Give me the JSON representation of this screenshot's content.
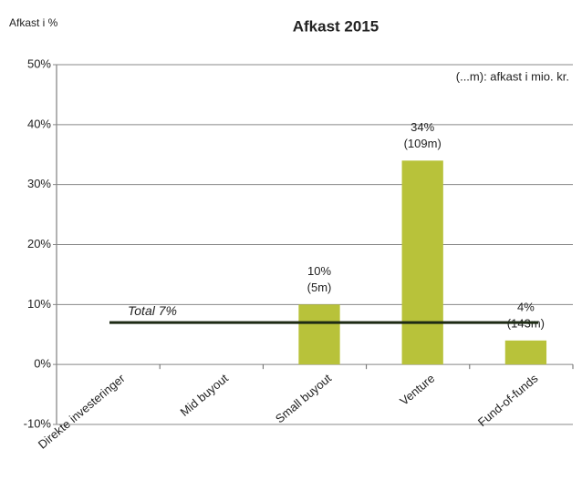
{
  "chart_data": {
    "type": "bar",
    "title": "Afkast 2015",
    "y_label": "Afkast i %",
    "note": "(...m): afkast i mio. kr.",
    "categories": [
      "Direkte investeringer",
      "Mid buyout",
      "Small buyout",
      "Venture",
      "Fund-of-funds"
    ],
    "values": [
      null,
      null,
      10,
      34,
      4
    ],
    "value_labels": [
      null,
      null,
      "10%",
      "34%",
      "4%"
    ],
    "amount_labels": [
      null,
      null,
      "(5m)",
      "(109m)",
      "(143m)"
    ],
    "color": "#b8c23a",
    "total": 7,
    "total_label": "Total 7%",
    "ylim": [
      -10,
      50
    ],
    "yticks": [
      {
        "value": -10,
        "label": "-10%"
      },
      {
        "value": 0,
        "label": "0%"
      },
      {
        "value": 10,
        "label": "10%"
      },
      {
        "value": 20,
        "label": "20%"
      },
      {
        "value": 30,
        "label": "30%"
      },
      {
        "value": 40,
        "label": "40%"
      },
      {
        "value": 50,
        "label": "50%"
      }
    ],
    "grid": true
  }
}
